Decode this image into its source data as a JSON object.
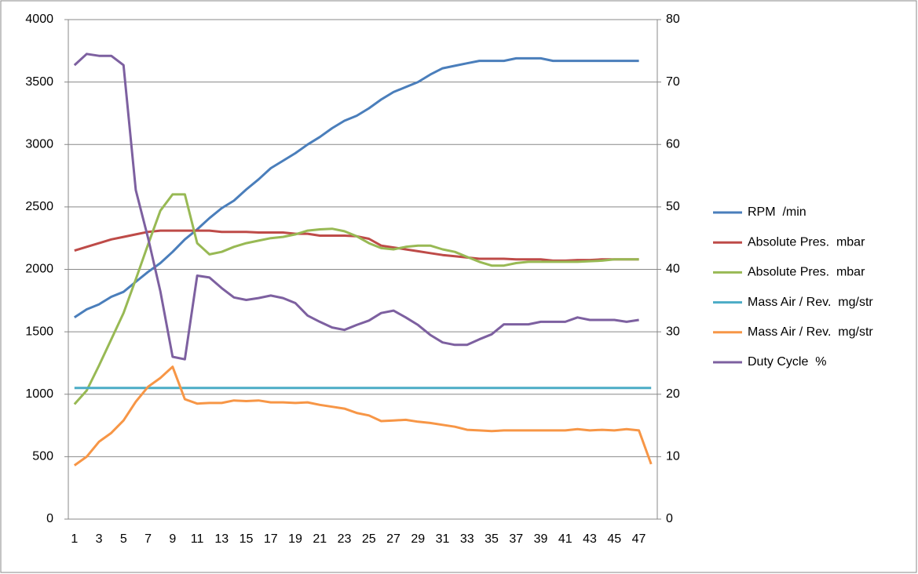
{
  "chart_data": {
    "type": "line",
    "categories": [
      1,
      null,
      3,
      null,
      5,
      null,
      7,
      null,
      9,
      null,
      11,
      null,
      13,
      null,
      15,
      null,
      17,
      null,
      19,
      null,
      21,
      null,
      23,
      null,
      25,
      null,
      27,
      null,
      29,
      null,
      31,
      null,
      33,
      null,
      35,
      null,
      37,
      null,
      39,
      null,
      41,
      null,
      43,
      null,
      45,
      null,
      47,
      null
    ],
    "ylim": [
      0,
      4000
    ],
    "yticks": [
      0,
      500,
      1000,
      1500,
      2000,
      2500,
      3000,
      3500,
      4000
    ],
    "y2lim": [
      0,
      80
    ],
    "y2ticks": [
      0,
      10,
      20,
      30,
      40,
      50,
      60,
      70,
      80
    ],
    "grid": true,
    "legend": "right",
    "series": [
      {
        "name": "RPM  /min",
        "color": "#4a7ebb",
        "values": [
          1615,
          1680,
          1720,
          1780,
          1820,
          1900,
          1980,
          2050,
          2140,
          2240,
          2320,
          2410,
          2490,
          2550,
          2640,
          2720,
          2810,
          2870,
          2930,
          3000,
          3060,
          3130,
          3190,
          3230,
          3290,
          3360,
          3420,
          3460,
          3500,
          3560,
          3610,
          3630,
          3650,
          3670,
          3670,
          3670,
          3690,
          3690,
          3690,
          3670,
          3670,
          3670,
          3670,
          3670,
          3670,
          3670,
          3670,
          null
        ]
      },
      {
        "name": "Absolute Pres.  mbar",
        "color": "#be4b48",
        "values": [
          2150,
          2180,
          2210,
          2240,
          2260,
          2280,
          2300,
          2310,
          2310,
          2310,
          2310,
          2310,
          2300,
          2300,
          2300,
          2295,
          2295,
          2295,
          2285,
          2285,
          2270,
          2270,
          2270,
          2265,
          2245,
          2190,
          2175,
          2160,
          2145,
          2130,
          2115,
          2105,
          2095,
          2085,
          2085,
          2085,
          2080,
          2080,
          2080,
          2070,
          2070,
          2075,
          2075,
          2080,
          2080,
          2080,
          2080,
          null
        ]
      },
      {
        "name": "Absolute Pres.  mbar",
        "color": "#98b954",
        "values": [
          920,
          1030,
          1230,
          1440,
          1650,
          1920,
          2200,
          2470,
          2600,
          2600,
          2210,
          2120,
          2140,
          2180,
          2210,
          2230,
          2250,
          2260,
          2280,
          2310,
          2320,
          2325,
          2305,
          2265,
          2210,
          2170,
          2160,
          2180,
          2190,
          2190,
          2160,
          2140,
          2100,
          2060,
          2030,
          2030,
          2050,
          2060,
          2060,
          2060,
          2060,
          2060,
          2065,
          2070,
          2080,
          2080,
          2080,
          null
        ]
      },
      {
        "name": "Mass Air / Rev.  mg/str",
        "color": "#4bacc6",
        "values": [
          1050,
          1050,
          1050,
          1050,
          1050,
          1050,
          1050,
          1050,
          1050,
          1050,
          1050,
          1050,
          1050,
          1050,
          1050,
          1050,
          1050,
          1050,
          1050,
          1050,
          1050,
          1050,
          1050,
          1050,
          1050,
          1050,
          1050,
          1050,
          1050,
          1050,
          1050,
          1050,
          1050,
          1050,
          1050,
          1050,
          1050,
          1050,
          1050,
          1050,
          1050,
          1050,
          1050,
          1050,
          1050,
          1050,
          1050,
          1050
        ]
      },
      {
        "name": "Mass Air / Rev.  mg/str",
        "color": "#f79646",
        "values": [
          430,
          500,
          620,
          690,
          790,
          940,
          1060,
          1130,
          1220,
          960,
          925,
          930,
          930,
          950,
          945,
          950,
          935,
          935,
          930,
          935,
          915,
          900,
          885,
          850,
          830,
          785,
          790,
          795,
          780,
          770,
          755,
          740,
          715,
          710,
          705,
          710,
          710,
          710,
          710,
          710,
          710,
          720,
          710,
          715,
          710,
          720,
          710,
          440
        ]
      },
      {
        "name": "Duty Cycle  %",
        "color": "#7d60a0",
        "axis": "y2",
        "values": [
          72.7,
          74.5,
          74.2,
          74.2,
          72.7,
          52.7,
          45,
          36.5,
          26,
          25.6,
          39,
          38.7,
          37,
          35.5,
          35.1,
          35.4,
          35.8,
          35.4,
          34.6,
          32.6,
          31.6,
          30.7,
          30.3,
          31.1,
          31.8,
          33,
          33.4,
          32.3,
          31.1,
          29.5,
          28.3,
          27.9,
          27.9,
          28.8,
          29.6,
          31.2,
          31.2,
          31.2,
          31.6,
          31.6,
          31.6,
          32.3,
          31.9,
          31.9,
          31.9,
          31.6,
          31.9,
          null
        ]
      }
    ]
  }
}
